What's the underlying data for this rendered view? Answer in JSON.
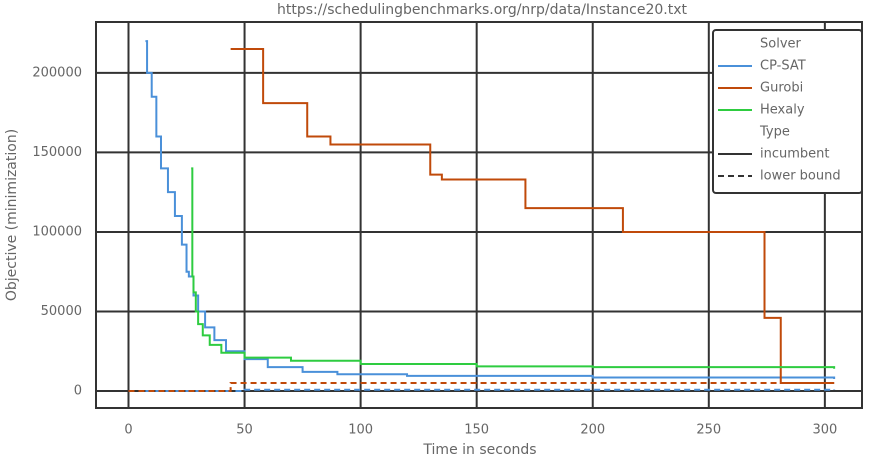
{
  "chart_data": {
    "type": "line",
    "title": "https://schedulingbenchmarks.org/nrp/data/Instance20.txt",
    "xlabel": "Time in seconds",
    "ylabel": "Objective (minimization)",
    "xlim": [
      -14,
      316
    ],
    "ylim": [
      -10700,
      232000
    ],
    "xticks": [
      0,
      50,
      100,
      150,
      200,
      250,
      300
    ],
    "yticks": [
      0,
      50000,
      100000,
      150000,
      200000
    ],
    "grid": true,
    "drawstyle": "steps-post",
    "legend": {
      "solver_title": "Solver",
      "type_title": "Type",
      "types": [
        "incumbent",
        "lower bound"
      ],
      "position": "upper right"
    },
    "solvers": [
      {
        "name": "CP-SAT",
        "color": "#4a90d9",
        "incumbent": {
          "x": [
            7.3,
            8,
            10,
            12,
            14,
            17,
            20,
            23,
            25,
            26,
            28,
            30,
            33,
            37,
            42,
            50,
            60,
            75,
            90,
            120,
            200,
            304
          ],
          "values": [
            220000,
            200000,
            185000,
            160000,
            140000,
            125000,
            110000,
            92000,
            75000,
            72000,
            60000,
            50000,
            40000,
            32000,
            25000,
            20000,
            15000,
            12000,
            10500,
            9500,
            8500,
            7500
          ]
        },
        "lower_bound": {
          "x": [
            7.3,
            50,
            304
          ],
          "values": [
            0,
            800,
            1200
          ]
        }
      },
      {
        "name": "Gurobi",
        "color": "#c04a0a",
        "incumbent": {
          "x": [
            44,
            58,
            77,
            87,
            130,
            135,
            171,
            213,
            274,
            281,
            304
          ],
          "values": [
            215000,
            181000,
            160000,
            155000,
            136000,
            133000,
            115000,
            100000,
            46000,
            5000,
            5000
          ]
        },
        "lower_bound": {
          "x": [
            0,
            44,
            304
          ],
          "values": [
            0,
            5000,
            5000
          ]
        }
      },
      {
        "name": "Hexaly",
        "color": "#2ecc40",
        "incumbent": {
          "x": [
            27,
            27.5,
            28,
            29,
            30,
            32,
            35,
            40,
            50,
            70,
            100,
            150,
            200,
            304
          ],
          "values": [
            140000,
            72000,
            62000,
            50000,
            42000,
            35000,
            29000,
            24000,
            21000,
            19000,
            17000,
            15500,
            15000,
            14000
          ]
        }
      }
    ]
  }
}
